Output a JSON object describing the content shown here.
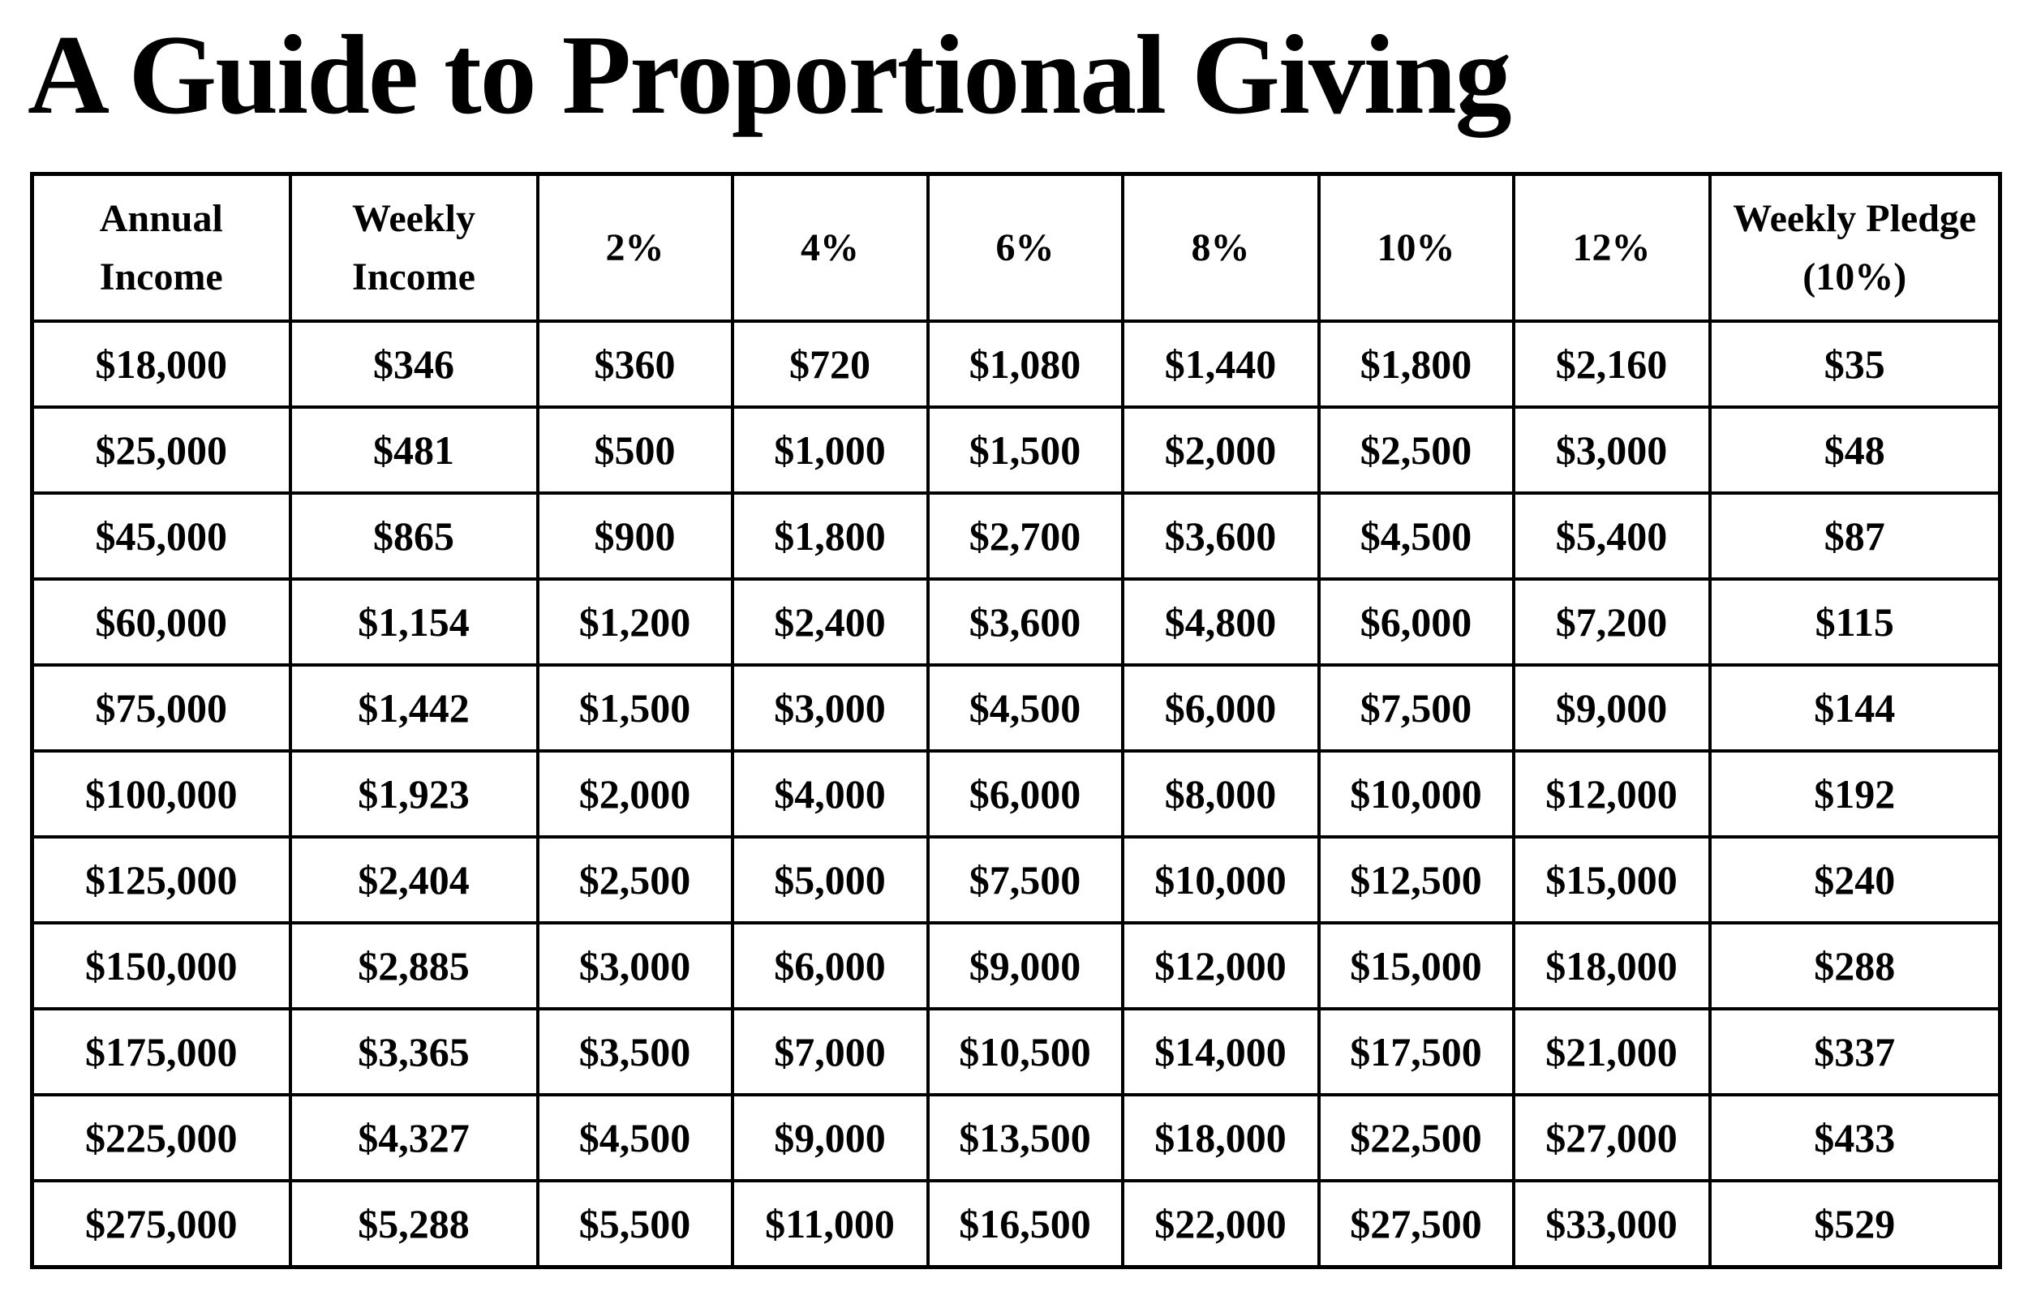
{
  "title": "A Guide to Proportional Giving",
  "table": {
    "headers": [
      {
        "line1": "Annual",
        "line2": "Income"
      },
      {
        "line1": "Weekly",
        "line2": "Income"
      },
      {
        "line1": "2%",
        "line2": ""
      },
      {
        "line1": "4%",
        "line2": ""
      },
      {
        "line1": "6%",
        "line2": ""
      },
      {
        "line1": "8%",
        "line2": ""
      },
      {
        "line1": "10%",
        "line2": ""
      },
      {
        "line1": "12%",
        "line2": ""
      },
      {
        "line1": "Weekly Pledge",
        "line2": "(10%)"
      }
    ],
    "rows": [
      [
        "$18,000",
        "$346",
        "$360",
        "$720",
        "$1,080",
        "$1,440",
        "$1,800",
        "$2,160",
        "$35"
      ],
      [
        "$25,000",
        "$481",
        "$500",
        "$1,000",
        "$1,500",
        "$2,000",
        "$2,500",
        "$3,000",
        "$48"
      ],
      [
        "$45,000",
        "$865",
        "$900",
        "$1,800",
        "$2,700",
        "$3,600",
        "$4,500",
        "$5,400",
        "$87"
      ],
      [
        "$60,000",
        "$1,154",
        "$1,200",
        "$2,400",
        "$3,600",
        "$4,800",
        "$6,000",
        "$7,200",
        "$115"
      ],
      [
        "$75,000",
        "$1,442",
        "$1,500",
        "$3,000",
        "$4,500",
        "$6,000",
        "$7,500",
        "$9,000",
        "$144"
      ],
      [
        "$100,000",
        "$1,923",
        "$2,000",
        "$4,000",
        "$6,000",
        "$8,000",
        "$10,000",
        "$12,000",
        "$192"
      ],
      [
        "$125,000",
        "$2,404",
        "$2,500",
        "$5,000",
        "$7,500",
        "$10,000",
        "$12,500",
        "$15,000",
        "$240"
      ],
      [
        "$150,000",
        "$2,885",
        "$3,000",
        "$6,000",
        "$9,000",
        "$12,000",
        "$15,000",
        "$18,000",
        "$288"
      ],
      [
        "$175,000",
        "$3,365",
        "$3,500",
        "$7,000",
        "$10,500",
        "$14,000",
        "$17,500",
        "$21,000",
        "$337"
      ],
      [
        "$225,000",
        "$4,327",
        "$4,500",
        "$9,000",
        "$13,500",
        "$18,000",
        "$22,500",
        "$27,000",
        "$433"
      ],
      [
        "$275,000",
        "$5,288",
        "$5,500",
        "$11,000",
        "$16,500",
        "$22,000",
        "$27,500",
        "$33,000",
        "$529"
      ]
    ]
  }
}
